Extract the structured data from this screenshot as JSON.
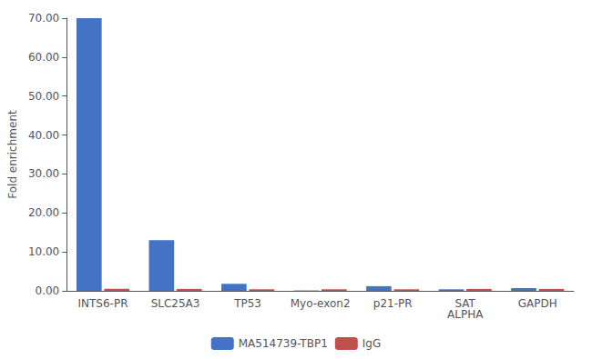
{
  "chart_data": {
    "type": "bar",
    "categories": [
      "INTS6-PR",
      "SLC25A3",
      "TP53",
      "Myo-exon2",
      "p21-PR",
      "SAT\nALPHA",
      "GAPDH"
    ],
    "series": [
      {
        "name": "MA514739-TBP1",
        "color": "#4472C4",
        "values": [
          70.0,
          13.0,
          1.8,
          0.1,
          1.2,
          0.4,
          0.7
        ]
      },
      {
        "name": "IgG",
        "color": "#C0504D",
        "values": [
          0.5,
          0.5,
          0.4,
          0.4,
          0.4,
          0.5,
          0.5
        ]
      }
    ],
    "ylabel": "Fold enrichment",
    "ylim": [
      0,
      70.0
    ],
    "yticks": [
      {
        "value": 0.0,
        "label": "0.00"
      },
      {
        "value": 10.0,
        "label": "10.00"
      },
      {
        "value": 20.0,
        "label": "20.00"
      },
      {
        "value": 30.0,
        "label": "30.00"
      },
      {
        "value": 40.0,
        "label": "40.00"
      },
      {
        "value": 50.0,
        "label": "50.00"
      },
      {
        "value": 60.0,
        "label": "60.00"
      },
      {
        "value": 70.0,
        "label": "70.00"
      }
    ],
    "grid": false,
    "legend": "bottom"
  }
}
